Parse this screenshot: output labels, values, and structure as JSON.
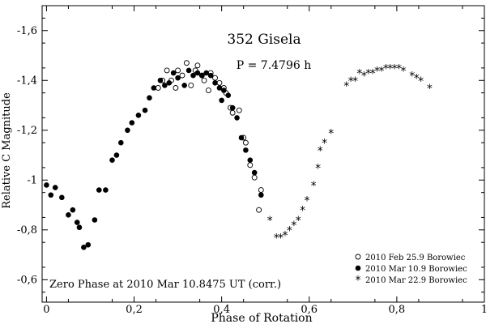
{
  "chart_data": {
    "type": "scatter",
    "title": "352 Gisela",
    "period_label": "P = 7.4796 h",
    "note": "Zero Phase at 2010 Mar 10.8475 UT (corr.)",
    "xlabel": "Phase of Rotation",
    "ylabel": "Relative C Magnitude",
    "xlim": [
      -0.01,
      1.0
    ],
    "ylim": [
      -1.7,
      -0.51
    ],
    "y_inverted_visual": true,
    "x_ticks": [
      0,
      0.2,
      0.4,
      0.6,
      0.8,
      1
    ],
    "x_tick_labels": [
      "0",
      "0,2",
      "0,4",
      "0,6",
      "0,8",
      "1"
    ],
    "y_ticks": [
      -1.6,
      -1.4,
      -1.2,
      -1.0,
      -0.8,
      -0.6
    ],
    "y_tick_labels": [
      "-1,6",
      "-1,4",
      "-1,2",
      "-1",
      "-0,8",
      "-0,6"
    ],
    "legend_position": "bottom-right",
    "series": [
      {
        "name": "2010 Feb 25.9 Borowiec",
        "marker": "open-circle",
        "points": [
          [
            0.255,
            -1.37
          ],
          [
            0.265,
            -1.4
          ],
          [
            0.275,
            -1.44
          ],
          [
            0.285,
            -1.4
          ],
          [
            0.295,
            -1.37
          ],
          [
            0.3,
            -1.44
          ],
          [
            0.31,
            -1.42
          ],
          [
            0.32,
            -1.47
          ],
          [
            0.33,
            -1.38
          ],
          [
            0.34,
            -1.44
          ],
          [
            0.345,
            -1.46
          ],
          [
            0.355,
            -1.42
          ],
          [
            0.36,
            -1.4
          ],
          [
            0.37,
            -1.36
          ],
          [
            0.375,
            -1.43
          ],
          [
            0.385,
            -1.41
          ],
          [
            0.395,
            -1.39
          ],
          [
            0.405,
            -1.37
          ],
          [
            0.41,
            -1.35
          ],
          [
            0.42,
            -1.29
          ],
          [
            0.425,
            -1.27
          ],
          [
            0.44,
            -1.28
          ],
          [
            0.45,
            -1.17
          ],
          [
            0.455,
            -1.15
          ],
          [
            0.465,
            -1.06
          ],
          [
            0.475,
            -1.01
          ],
          [
            0.485,
            -0.88
          ],
          [
            0.49,
            -0.96
          ]
        ]
      },
      {
        "name": "2010 Mar 10.9 Borowiec",
        "marker": "filled-circle",
        "points": [
          [
            0.0,
            -0.98
          ],
          [
            0.01,
            -0.94
          ],
          [
            0.02,
            -0.97
          ],
          [
            0.035,
            -0.93
          ],
          [
            0.05,
            -0.86
          ],
          [
            0.06,
            -0.88
          ],
          [
            0.07,
            -0.83
          ],
          [
            0.075,
            -0.81
          ],
          [
            0.085,
            -0.73
          ],
          [
            0.095,
            -0.74
          ],
          [
            0.11,
            -0.84
          ],
          [
            0.12,
            -0.96
          ],
          [
            0.135,
            -0.96
          ],
          [
            0.15,
            -1.08
          ],
          [
            0.16,
            -1.1
          ],
          [
            0.17,
            -1.15
          ],
          [
            0.185,
            -1.2
          ],
          [
            0.195,
            -1.23
          ],
          [
            0.21,
            -1.26
          ],
          [
            0.225,
            -1.28
          ],
          [
            0.235,
            -1.33
          ],
          [
            0.245,
            -1.37
          ],
          [
            0.26,
            -1.4
          ],
          [
            0.27,
            -1.38
          ],
          [
            0.28,
            -1.39
          ],
          [
            0.29,
            -1.43
          ],
          [
            0.3,
            -1.41
          ],
          [
            0.315,
            -1.38
          ],
          [
            0.325,
            -1.44
          ],
          [
            0.335,
            -1.42
          ],
          [
            0.345,
            -1.43
          ],
          [
            0.355,
            -1.42
          ],
          [
            0.365,
            -1.43
          ],
          [
            0.375,
            -1.42
          ],
          [
            0.385,
            -1.39
          ],
          [
            0.395,
            -1.37
          ],
          [
            0.4,
            -1.32
          ],
          [
            0.405,
            -1.36
          ],
          [
            0.415,
            -1.34
          ],
          [
            0.425,
            -1.29
          ],
          [
            0.435,
            -1.25
          ],
          [
            0.445,
            -1.17
          ],
          [
            0.455,
            -1.12
          ],
          [
            0.465,
            -1.08
          ],
          [
            0.475,
            -1.03
          ],
          [
            0.49,
            -0.94
          ]
        ]
      },
      {
        "name": "2010 Mar 22.9 Borowiec",
        "marker": "asterisk",
        "points": [
          [
            0.51,
            -0.84
          ],
          [
            0.525,
            -0.77
          ],
          [
            0.535,
            -0.77
          ],
          [
            0.545,
            -0.78
          ],
          [
            0.555,
            -0.8
          ],
          [
            0.565,
            -0.82
          ],
          [
            0.575,
            -0.84
          ],
          [
            0.585,
            -0.88
          ],
          [
            0.595,
            -0.92
          ],
          [
            0.61,
            -0.98
          ],
          [
            0.62,
            -1.05
          ],
          [
            0.625,
            -1.12
          ],
          [
            0.635,
            -1.15
          ],
          [
            0.65,
            -1.19
          ],
          [
            0.685,
            -1.38
          ],
          [
            0.695,
            -1.4
          ],
          [
            0.705,
            -1.4
          ],
          [
            0.715,
            -1.43
          ],
          [
            0.725,
            -1.42
          ],
          [
            0.735,
            -1.43
          ],
          [
            0.745,
            -1.43
          ],
          [
            0.755,
            -1.44
          ],
          [
            0.765,
            -1.44
          ],
          [
            0.775,
            -1.45
          ],
          [
            0.785,
            -1.45
          ],
          [
            0.795,
            -1.45
          ],
          [
            0.805,
            -1.45
          ],
          [
            0.815,
            -1.44
          ],
          [
            0.835,
            -1.42
          ],
          [
            0.845,
            -1.41
          ],
          [
            0.855,
            -1.4
          ],
          [
            0.875,
            -1.37
          ]
        ]
      }
    ]
  }
}
